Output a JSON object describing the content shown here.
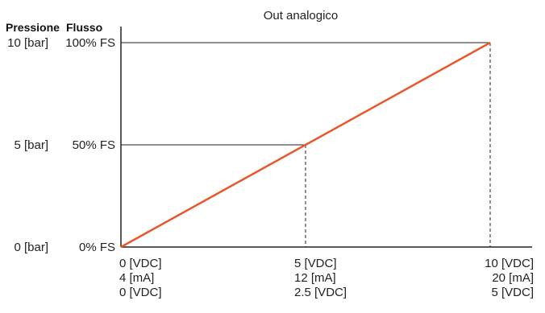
{
  "chart_data": {
    "type": "line",
    "title": "Out analogico",
    "left_header": "Pressione",
    "right_header": "Flusso",
    "y_ticks": [
      {
        "value": 0,
        "pressione": "0 [bar]",
        "flusso": "0% FS"
      },
      {
        "value": 50,
        "pressione": "5 [bar]",
        "flusso": "50% FS"
      },
      {
        "value": 100,
        "pressione": "10 [bar]",
        "flusso": "100% FS"
      }
    ],
    "x_ticks": [
      {
        "value": 0,
        "lines": [
          "0 [VDC]",
          "4 [mA]",
          "0 [VDC]"
        ]
      },
      {
        "value": 5,
        "lines": [
          "5 [VDC]",
          "12 [mA]",
          "2.5 [VDC]"
        ]
      },
      {
        "value": 10,
        "lines": [
          "10 [VDC]",
          "20 [mA]",
          "5 [VDC]"
        ]
      }
    ],
    "xlim": [
      0,
      10
    ],
    "ylim": [
      0,
      100
    ],
    "series": [
      {
        "x": [
          0,
          10
        ],
        "y": [
          0,
          100
        ],
        "color": "#e8582a"
      }
    ]
  }
}
